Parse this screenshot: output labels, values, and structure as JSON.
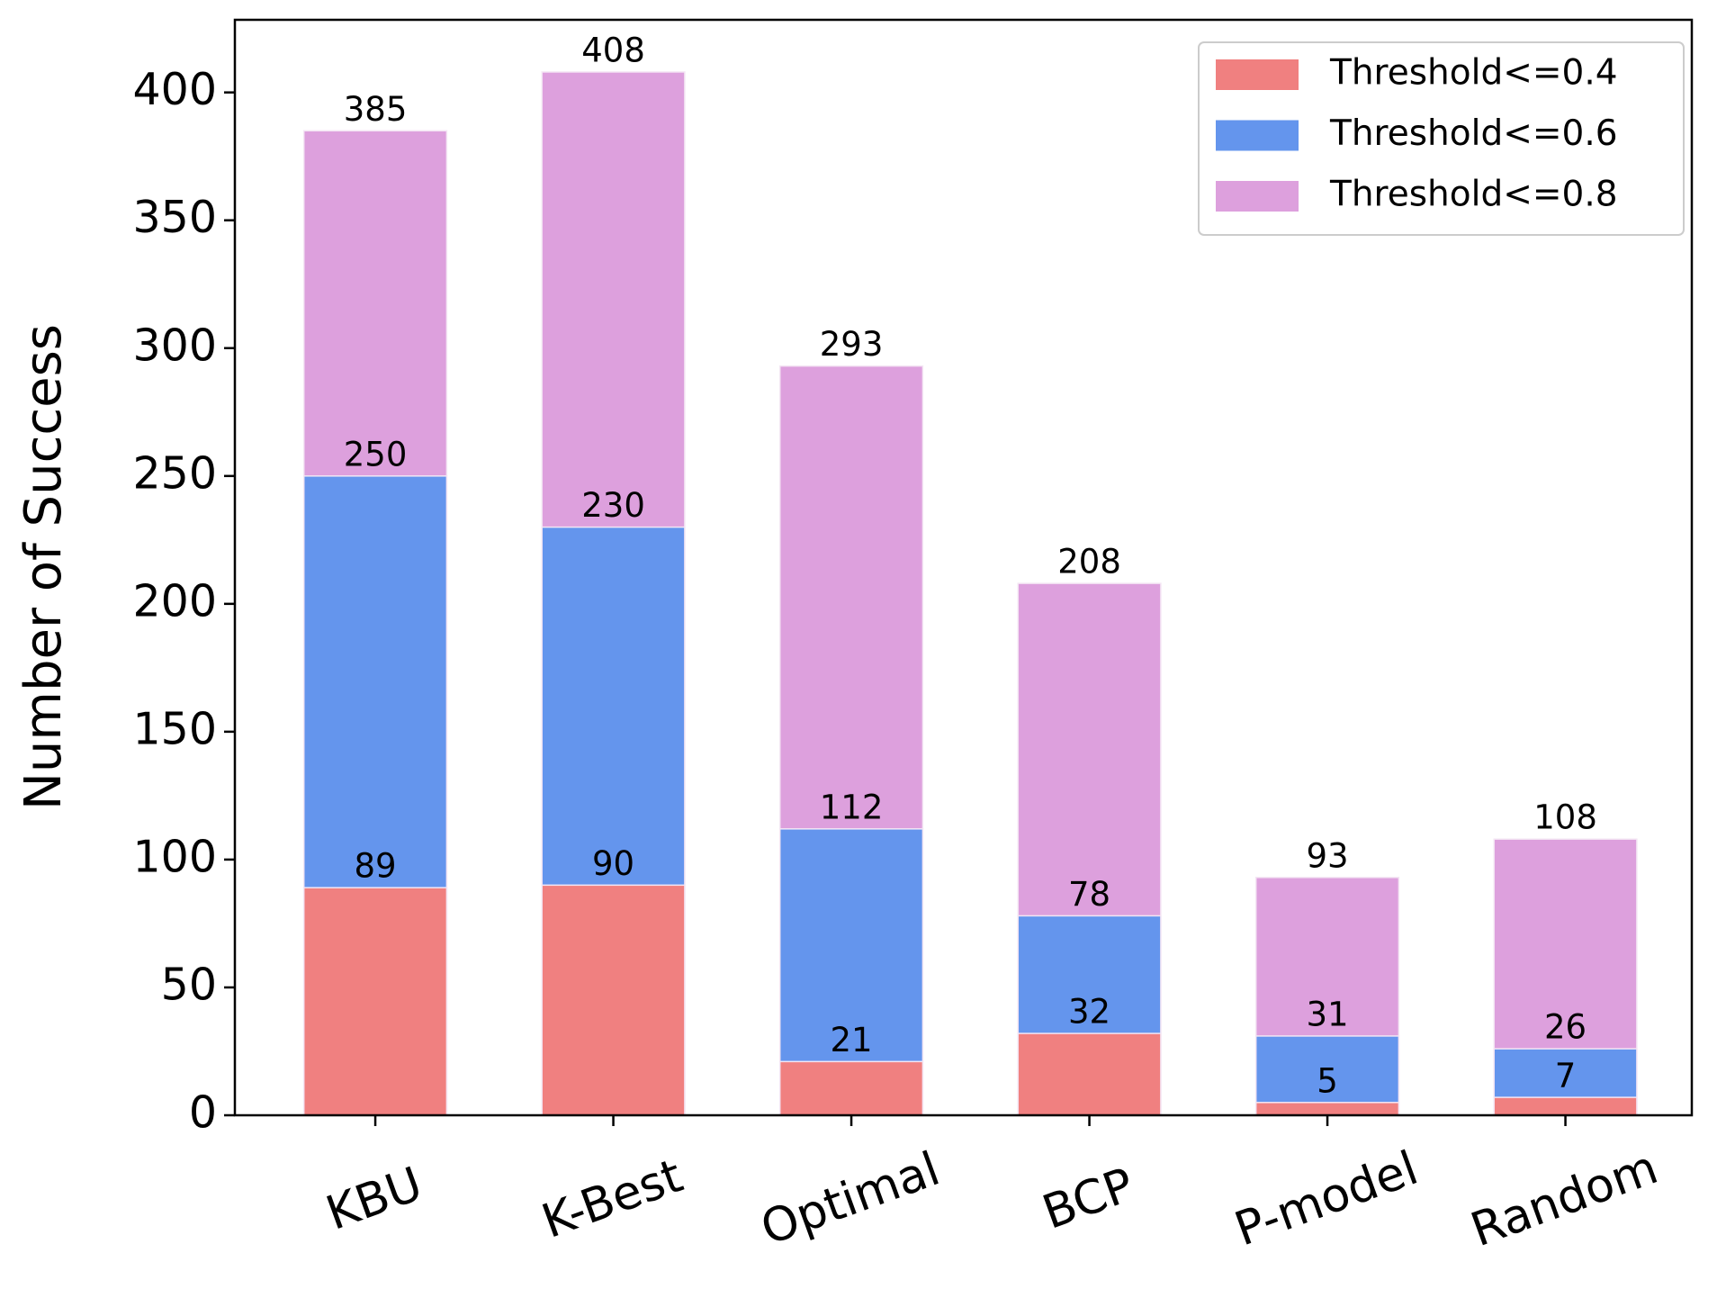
{
  "chart_data": {
    "type": "bar",
    "y_label": "Number of Success",
    "categories": [
      "KBU",
      "K-Best",
      "Optimal",
      "BCP",
      "P-model",
      "Random"
    ],
    "series": [
      {
        "name": "Threshold<=0.4",
        "color": "#f08080",
        "values": [
          89,
          90,
          21,
          32,
          5,
          7
        ]
      },
      {
        "name": "Threshold<=0.6",
        "color": "#6495ed",
        "values": [
          250,
          230,
          112,
          78,
          31,
          26
        ]
      },
      {
        "name": "Threshold<=0.8",
        "color": "#dda0dd",
        "values": [
          385,
          408,
          293,
          208,
          93,
          108
        ]
      }
    ],
    "ylim": [
      0,
      428.4
    ],
    "yticks": [
      0,
      50,
      100,
      150,
      200,
      250,
      300,
      350,
      400
    ],
    "legend": "upper right"
  }
}
